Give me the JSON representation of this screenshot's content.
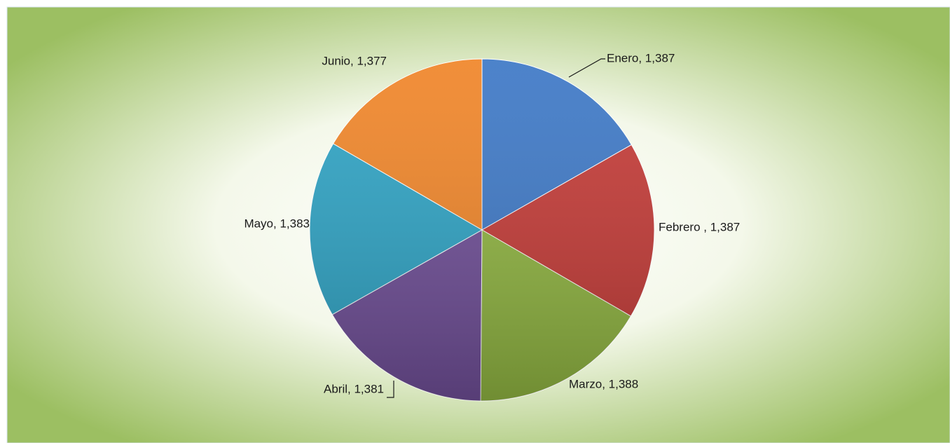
{
  "chart_data": {
    "type": "pie",
    "values": [
      1387,
      1387,
      1388,
      1381,
      1383,
      1377
    ],
    "value_labels": [
      "Enero, 1,387",
      "Febrero , 1,387",
      "Marzo, 1,388",
      "Abril, 1,381",
      "Mayo, 1,383",
      "Junio, 1,377"
    ],
    "colors": [
      "#3d78c6",
      "#c43a36",
      "#90b541",
      "#6f4e97",
      "#2ea3c4",
      "#f08528"
    ]
  }
}
